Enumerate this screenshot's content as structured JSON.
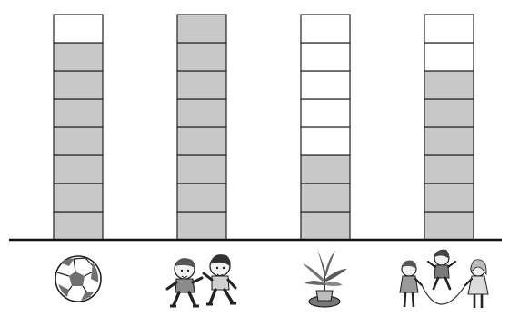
{
  "chart_data": {
    "type": "bar",
    "categories": [
      "soccer-ball",
      "two-children-running",
      "potted-plant",
      "children-jumping-rope"
    ],
    "values": [
      7,
      8,
      3,
      6
    ],
    "max_units": 8,
    "ylim": [
      0,
      8
    ],
    "title": "",
    "xlabel": "",
    "ylabel": "",
    "grid": false
  },
  "colors": {
    "filled": "#c8c8c8",
    "empty": "#ffffff",
    "stroke": "#222222",
    "baseline": "#111111"
  },
  "icons": [
    {
      "name": "soccer-ball-icon"
    },
    {
      "name": "children-running-icon"
    },
    {
      "name": "potted-plant-icon"
    },
    {
      "name": "jump-rope-children-icon"
    }
  ]
}
